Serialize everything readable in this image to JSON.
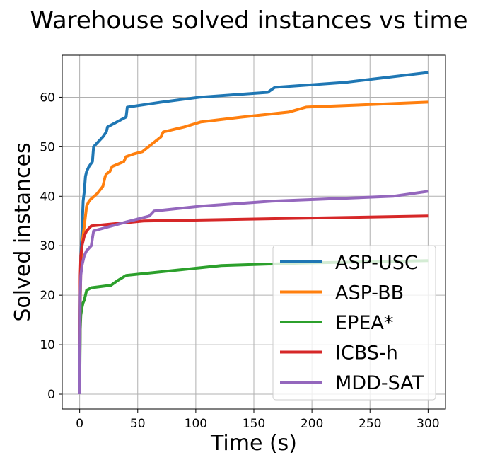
{
  "chart_data": {
    "type": "line",
    "title": "Warehouse solved instances vs time",
    "xlabel": "Time (s)",
    "ylabel": "Solved instances",
    "xlim": [
      -15,
      315
    ],
    "ylim": [
      -3,
      68.5
    ],
    "xticks": [
      0,
      50,
      100,
      150,
      200,
      250,
      300
    ],
    "yticks": [
      0,
      10,
      20,
      30,
      40,
      50,
      60
    ],
    "grid": true,
    "legend_position": "lower-right",
    "series": [
      {
        "name": "ASP-USC",
        "color": "#1f77b4",
        "x": [
          0,
          0.5,
          1,
          2,
          3,
          4,
          5,
          6,
          8,
          11,
          12,
          16,
          20,
          23,
          24,
          28,
          32,
          36,
          40,
          41,
          70,
          103,
          162,
          168,
          228,
          300
        ],
        "y": [
          0,
          20,
          28,
          33,
          39,
          41,
          44,
          45,
          46,
          47,
          50,
          51,
          52,
          53,
          54,
          54.5,
          55,
          55.5,
          56,
          58,
          59,
          60,
          61,
          62,
          63,
          65
        ]
      },
      {
        "name": "ASP-BB",
        "color": "#ff7f0e",
        "x": [
          0,
          0.5,
          1,
          2,
          3,
          4,
          5,
          6,
          8,
          10,
          15,
          20,
          22,
          23,
          26,
          28,
          38,
          40,
          46,
          54,
          62,
          70,
          72,
          90,
          104,
          140,
          180,
          195,
          300
        ],
        "y": [
          0,
          18,
          25,
          30,
          32,
          34,
          36,
          38,
          39,
          39.5,
          40.5,
          42,
          44,
          44.5,
          45,
          46,
          47,
          48,
          48.5,
          49,
          50.5,
          52,
          53,
          54,
          55,
          56,
          57,
          58,
          59
        ]
      },
      {
        "name": "EPEA*",
        "color": "#2ca02c",
        "x": [
          0,
          0.5,
          1,
          2,
          3,
          4,
          6,
          10,
          27,
          33,
          40,
          122,
          190,
          300
        ],
        "y": [
          0,
          13,
          16,
          17.5,
          18.5,
          19,
          21,
          21.5,
          22,
          23,
          24,
          26,
          26.5,
          27
        ]
      },
      {
        "name": "ICBS-h",
        "color": "#d62728",
        "x": [
          0,
          0.5,
          1,
          2,
          3,
          4,
          5,
          6,
          10,
          55,
          300
        ],
        "y": [
          0,
          24,
          28,
          30,
          31,
          32,
          32.5,
          33,
          34,
          35,
          36
        ]
      },
      {
        "name": "MDD-SAT",
        "color": "#9467bd",
        "x": [
          0,
          0.5,
          1,
          2,
          3,
          4,
          6,
          8,
          10,
          12,
          40,
          60,
          64,
          105,
          165,
          270,
          300
        ],
        "y": [
          0,
          20,
          24,
          26,
          27,
          28,
          29,
          29.5,
          30,
          33,
          34.8,
          36,
          37,
          38,
          39,
          40,
          41
        ]
      }
    ]
  }
}
